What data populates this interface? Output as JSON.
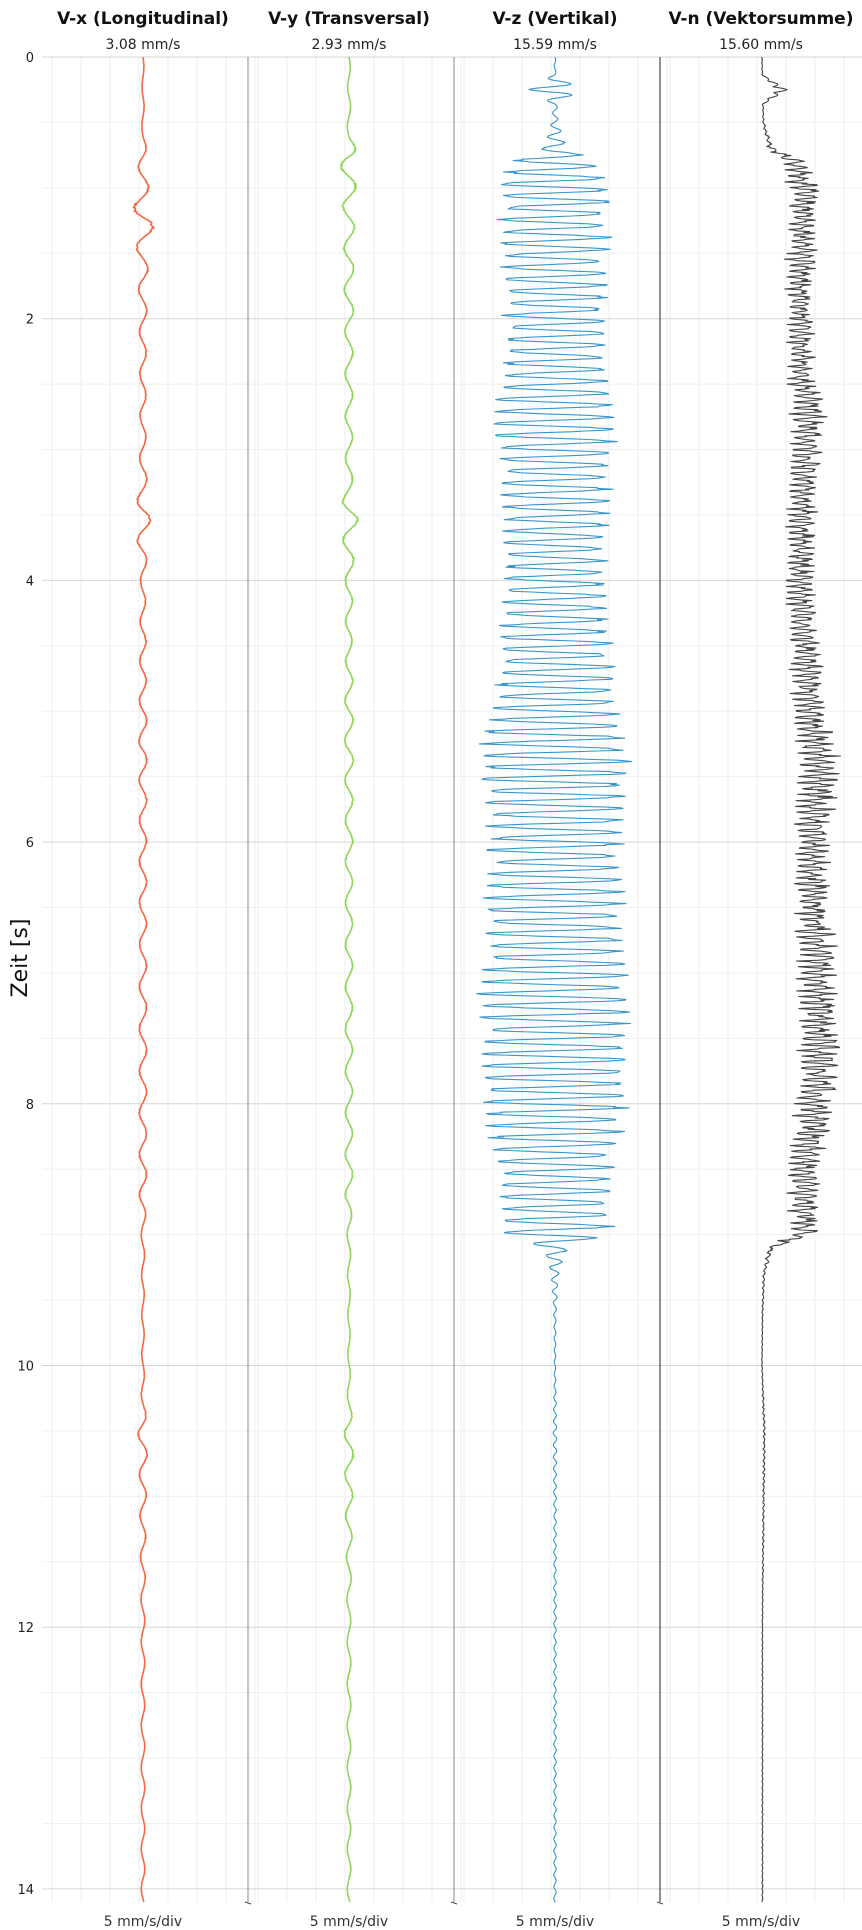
{
  "chart_data": {
    "type": "line",
    "ylabel": "Zeit [s]",
    "ylim": [
      0,
      14.1
    ],
    "y_ticks": [
      "0",
      "2",
      "4",
      "6",
      "8",
      "10",
      "12",
      "14"
    ],
    "y_tick_values": [
      0,
      2,
      4,
      6,
      8,
      10,
      12,
      14
    ],
    "grid": true,
    "orientation": "vertical-time",
    "series": [
      {
        "name": "V-x (Longitudinal)",
        "peak_label": "3.08 mm/s",
        "peak": 3.08,
        "scale_label": "5 mm/s/div",
        "color": "#f26a44",
        "envelope": [
          [
            0,
            0.15
          ],
          [
            0.6,
            0.2
          ],
          [
            0.7,
            0.6
          ],
          [
            1.0,
            0.9
          ],
          [
            1.25,
            1.9
          ],
          [
            1.5,
            0.9
          ],
          [
            2.0,
            0.6
          ],
          [
            2.5,
            0.5
          ],
          [
            3.0,
            0.5
          ],
          [
            3.3,
            0.7
          ],
          [
            3.5,
            1.3
          ],
          [
            3.8,
            0.7
          ],
          [
            4.0,
            0.4
          ],
          [
            4.5,
            0.5
          ],
          [
            5.0,
            0.6
          ],
          [
            5.3,
            0.7
          ],
          [
            5.6,
            0.6
          ],
          [
            6.0,
            0.6
          ],
          [
            7.0,
            0.6
          ],
          [
            8.0,
            0.6
          ],
          [
            8.7,
            0.6
          ],
          [
            9.0,
            0.3
          ],
          [
            9.5,
            0.2
          ],
          [
            10.0,
            0.2
          ],
          [
            10.3,
            0.3
          ],
          [
            10.5,
            0.8
          ],
          [
            10.8,
            0.6
          ],
          [
            11.5,
            0.4
          ],
          [
            12.0,
            0.3
          ],
          [
            13.0,
            0.3
          ],
          [
            14.1,
            0.3
          ]
        ]
      },
      {
        "name": "V-y (Transversal)",
        "peak_label": "2.93 mm/s",
        "peak": 2.93,
        "scale_label": "5 mm/s/div",
        "color": "#8fd65a",
        "envelope": [
          [
            0,
            0.2
          ],
          [
            0.6,
            0.3
          ],
          [
            0.75,
            1.6
          ],
          [
            0.9,
            1.2
          ],
          [
            1.3,
            0.9
          ],
          [
            2.0,
            0.7
          ],
          [
            2.5,
            0.6
          ],
          [
            3.0,
            0.6
          ],
          [
            3.3,
            0.6
          ],
          [
            3.5,
            1.5
          ],
          [
            3.7,
            1.0
          ],
          [
            4.0,
            0.6
          ],
          [
            4.5,
            0.5
          ],
          [
            5.0,
            0.7
          ],
          [
            5.3,
            0.7
          ],
          [
            6.0,
            0.6
          ],
          [
            7.0,
            0.6
          ],
          [
            8.0,
            0.6
          ],
          [
            8.7,
            0.6
          ],
          [
            9.0,
            0.3
          ],
          [
            9.5,
            0.2
          ],
          [
            10.0,
            0.2
          ],
          [
            10.3,
            0.3
          ],
          [
            10.5,
            0.8
          ],
          [
            10.8,
            0.7
          ],
          [
            11.5,
            0.4
          ],
          [
            12.0,
            0.3
          ],
          [
            13.0,
            0.3
          ],
          [
            14.1,
            0.3
          ]
        ]
      },
      {
        "name": "V-z (Vertikal)",
        "peak_label": "15.59 mm/s",
        "peak": 15.59,
        "scale_label": "5 mm/s/div",
        "color": "#3a96c9",
        "envelope": [
          [
            0,
            0.1
          ],
          [
            0.2,
            0.2
          ],
          [
            0.5,
            0.5
          ],
          [
            0.7,
            2.0
          ],
          [
            0.8,
            7.0
          ],
          [
            1.0,
            9.0
          ],
          [
            1.5,
            8.5
          ],
          [
            2.0,
            8.0
          ],
          [
            2.5,
            8.5
          ],
          [
            2.7,
            10.0
          ],
          [
            3.0,
            9.5
          ],
          [
            3.5,
            8.5
          ],
          [
            4.0,
            8.0
          ],
          [
            4.5,
            9.0
          ],
          [
            5.0,
            10.0
          ],
          [
            5.3,
            12.0
          ],
          [
            5.7,
            11.5
          ],
          [
            6.0,
            10.5
          ],
          [
            6.5,
            11.0
          ],
          [
            7.0,
            12.0
          ],
          [
            7.5,
            12.0
          ],
          [
            8.0,
            11.5
          ],
          [
            8.5,
            9.0
          ],
          [
            9.0,
            9.0
          ],
          [
            9.1,
            2.0
          ],
          [
            9.3,
            0.6
          ],
          [
            9.6,
            0.2
          ],
          [
            10.0,
            0.1
          ],
          [
            10.5,
            0.3
          ],
          [
            10.6,
            0.3
          ],
          [
            11.0,
            0.2
          ],
          [
            14.1,
            0.2
          ]
        ],
        "spike_t": 0.25,
        "spike_amp": 4.5
      },
      {
        "name": "V-n (Vektorsumme)",
        "peak_label": "15.60 mm/s",
        "peak": 15.6,
        "scale_label": "5 mm/s/div",
        "color": "#444444",
        "envelope": [
          [
            0,
            0.2
          ],
          [
            0.2,
            0.3
          ],
          [
            0.5,
            0.5
          ],
          [
            0.7,
            2.0
          ],
          [
            0.8,
            7.0
          ],
          [
            1.0,
            9.0
          ],
          [
            1.5,
            8.5
          ],
          [
            2.0,
            8.0
          ],
          [
            2.5,
            8.5
          ],
          [
            2.7,
            10.0
          ],
          [
            3.0,
            9.5
          ],
          [
            3.5,
            8.5
          ],
          [
            4.0,
            8.0
          ],
          [
            4.5,
            9.0
          ],
          [
            5.0,
            10.0
          ],
          [
            5.3,
            12.0
          ],
          [
            5.7,
            11.5
          ],
          [
            6.0,
            10.5
          ],
          [
            6.5,
            11.0
          ],
          [
            7.0,
            12.0
          ],
          [
            7.5,
            12.0
          ],
          [
            8.0,
            11.5
          ],
          [
            8.5,
            9.0
          ],
          [
            9.0,
            9.0
          ],
          [
            9.1,
            2.0
          ],
          [
            9.3,
            0.6
          ],
          [
            9.6,
            0.3
          ],
          [
            10.0,
            0.2
          ],
          [
            10.5,
            0.7
          ],
          [
            10.8,
            0.6
          ],
          [
            11.5,
            0.4
          ],
          [
            12.0,
            0.3
          ],
          [
            14.1,
            0.3
          ]
        ],
        "spike_t": 0.25,
        "spike_amp": 4.5,
        "one_sided": true
      }
    ]
  }
}
